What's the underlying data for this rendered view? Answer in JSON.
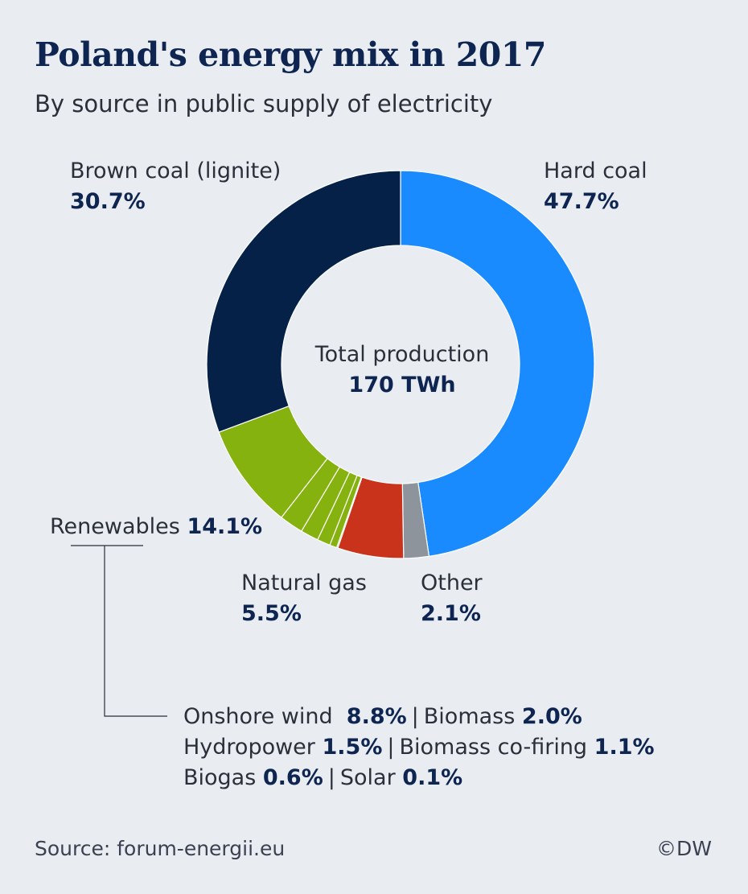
{
  "title": "Poland's energy mix in 2017",
  "subtitle": "By source in public supply of electricity",
  "center": {
    "label": "Total production",
    "value": "170 TWh"
  },
  "labels": {
    "hard_coal": {
      "name": "Hard coal",
      "value": "47.7%"
    },
    "brown_coal": {
      "name": "Brown coal (lignite)",
      "value": "30.7%"
    },
    "renewables": {
      "name": "Renewables",
      "value": "14.1%"
    },
    "natural_gas": {
      "name": "Natural gas",
      "value": "5.5%"
    },
    "other": {
      "name": "Other",
      "value": "2.1%"
    }
  },
  "renewables_breakdown": [
    [
      {
        "name": "Onshore wind",
        "value": "8.8%"
      },
      {
        "name": "Biomass",
        "value": "2.0%"
      }
    ],
    [
      {
        "name": "Hydropower",
        "value": "1.5%"
      },
      {
        "name": "Biomass co-firing",
        "value": "1.1%"
      }
    ],
    [
      {
        "name": "Biogas",
        "value": "0.6%"
      },
      {
        "name": "Solar",
        "value": "0.1%"
      }
    ]
  ],
  "footer": {
    "source": "Source: forum-energii.eu",
    "credit": "©DW"
  },
  "chart_data": {
    "type": "pie",
    "donut": true,
    "unit": "%",
    "slices": [
      {
        "name": "Hard coal",
        "value": 47.7,
        "color": "#1a8bff"
      },
      {
        "name": "Other",
        "value": 2.1,
        "color": "#8e949c"
      },
      {
        "name": "Natural gas",
        "value": 5.5,
        "color": "#c9321b"
      },
      {
        "name": "Solar",
        "value": 0.1,
        "color": "#85b20f"
      },
      {
        "name": "Biogas",
        "value": 0.6,
        "color": "#85b20f"
      },
      {
        "name": "Biomass co-firing",
        "value": 1.1,
        "color": "#85b20f"
      },
      {
        "name": "Hydropower",
        "value": 1.5,
        "color": "#85b20f"
      },
      {
        "name": "Biomass",
        "value": 2.0,
        "color": "#85b20f"
      },
      {
        "name": "Onshore wind",
        "value": 8.8,
        "color": "#85b20f"
      },
      {
        "name": "Brown coal (lignite)",
        "value": 30.7,
        "color": "#052148"
      }
    ]
  }
}
